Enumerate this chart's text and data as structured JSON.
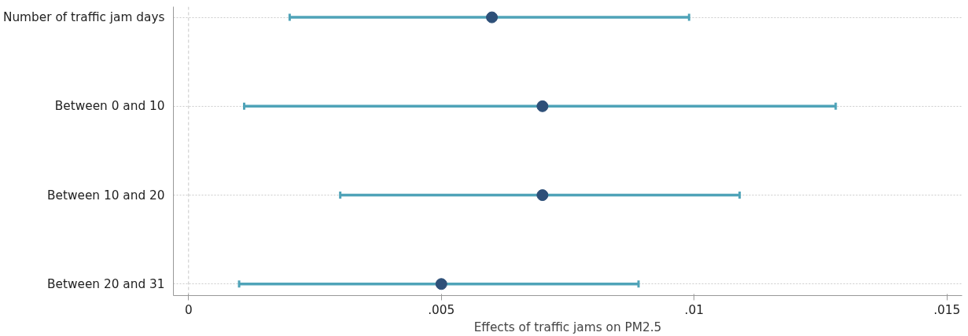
{
  "chart_data": {
    "type": "scatter",
    "orientation": "horizontal",
    "xlabel": "Effects of traffic jams on PM2.5",
    "categories": [
      "Number of traffic jam days",
      "Between 0 and 10",
      "Between 10 and 20",
      "Between 20 and 31"
    ],
    "series": [
      {
        "color": "#2e5079",
        "values": [
          0.006,
          0.007,
          0.007,
          0.005
        ],
        "errors": [
          [
            0.002,
            0.0099
          ],
          [
            0.0011,
            0.0128
          ],
          [
            0.003,
            0.0109
          ],
          [
            0.001,
            0.0089
          ]
        ]
      }
    ],
    "xlim": [
      -0.0003,
      0.0153
    ],
    "xticks": [
      0,
      {
        "value": 0.005,
        "label": ".005"
      },
      {
        "value": 0.01,
        "label": ".01"
      },
      {
        "value": 0.015,
        "label": ".015"
      }
    ],
    "grid": "y",
    "marker": "circle",
    "ref_lines": [
      {
        "axis": "x",
        "value": 0,
        "color": "#c8c8c8",
        "line_style": "dashed"
      }
    ]
  }
}
